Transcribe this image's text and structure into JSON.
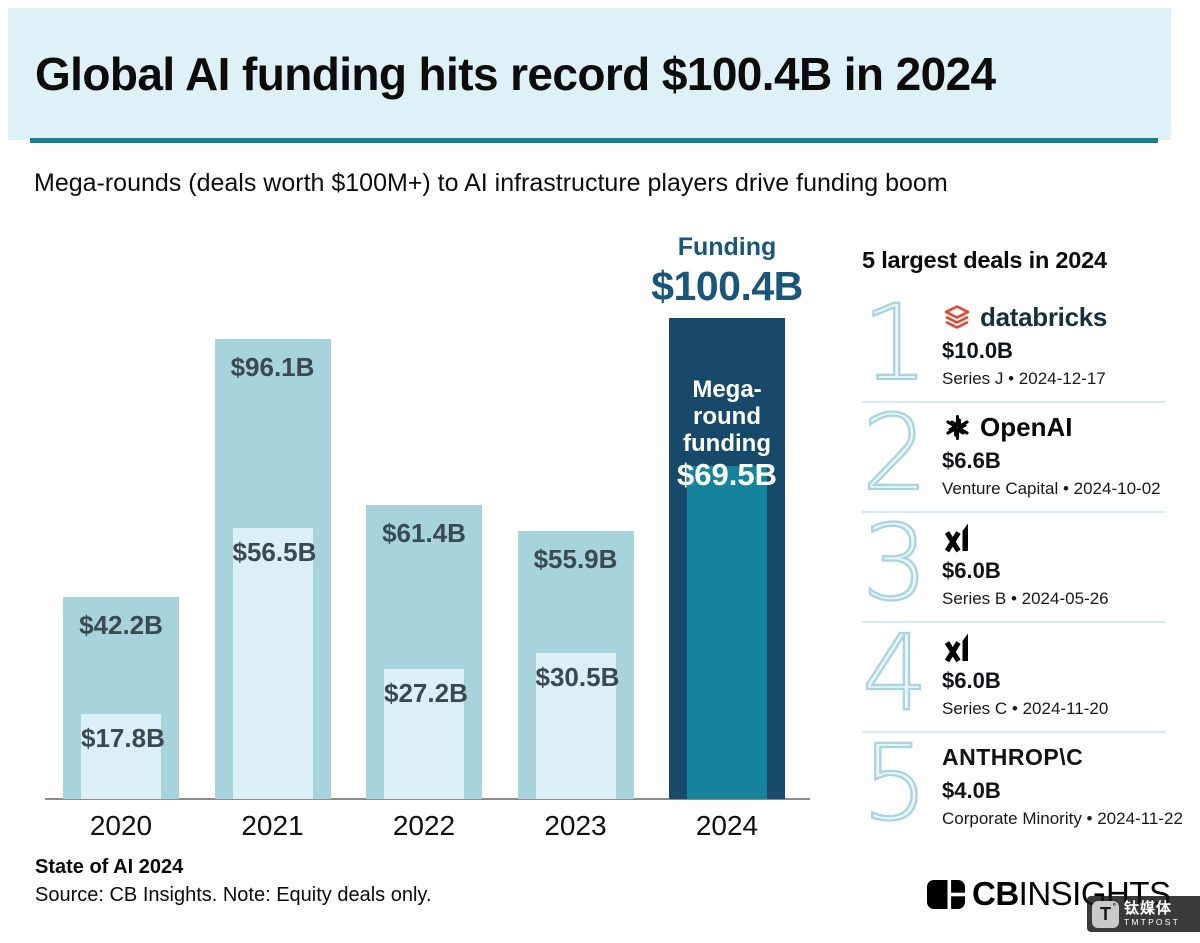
{
  "header": {
    "title": "Global AI funding hits record $100.4B in 2024",
    "subtitle": "Mega-rounds (deals worth $100M+) to AI infrastructure players drive funding boom"
  },
  "chart_data": {
    "type": "bar",
    "title": "Global AI funding hits record $100.4B in 2024",
    "categories": [
      "2020",
      "2021",
      "2022",
      "2023",
      "2024"
    ],
    "series": [
      {
        "name": "Funding",
        "unit": "$B",
        "values": [
          42.2,
          96.1,
          61.4,
          55.9,
          100.4
        ],
        "labels": [
          "$42.2B",
          "$96.1B",
          "$61.4B",
          "$55.9B",
          "$100.4B"
        ]
      },
      {
        "name": "Mega-round funding",
        "unit": "$B",
        "values": [
          17.8,
          56.5,
          27.2,
          30.5,
          69.5
        ],
        "labels": [
          "$17.8B",
          "$56.5B",
          "$27.2B",
          "$30.5B",
          "$69.5B"
        ]
      }
    ],
    "ylim": [
      0,
      100.4
    ],
    "grid": false,
    "legend_position": "none",
    "highlight_category": "2024",
    "annotations": {
      "funding_title": "Funding",
      "funding_value": "$100.4B",
      "mega_line1": "Mega-round",
      "mega_line2": "funding",
      "mega_value": "$69.5B"
    },
    "colors": {
      "total": "#a6d3dc",
      "mega": "#dceff4",
      "highlight_total": "#17496a",
      "highlight_mega": "#15839b",
      "value_label": "#3b4953",
      "annotation": "#1a567c",
      "axis": "#8b8d8f"
    }
  },
  "deals": {
    "heading": "5 largest deals in 2024",
    "items": [
      {
        "rank": "1",
        "company": "databricks",
        "logo": "databricks-logo",
        "amount": "$10.0B",
        "details": "Series J • 2024-12-17"
      },
      {
        "rank": "2",
        "company": "OpenAI",
        "logo": "openai-logo",
        "amount": "$6.6B",
        "details": "Venture Capital • 2024-10-02"
      },
      {
        "rank": "3",
        "company": "xAI",
        "logo": "xai-logo",
        "amount": "$6.0B",
        "details": "Series B • 2024-05-26"
      },
      {
        "rank": "4",
        "company": "xAI",
        "logo": "xai-logo",
        "amount": "$6.0B",
        "details": "Series C • 2024-11-20"
      },
      {
        "rank": "5",
        "company": "Anthropic",
        "logo": "anthropic-wordmark",
        "wordmark": "ANTHROP\\C",
        "amount": "$4.0B",
        "details": "Corporate Minority • 2024-11-22"
      }
    ]
  },
  "footer": {
    "report_label": "State of AI 2024",
    "source_note": "Source: CB Insights. Note: Equity deals only.",
    "brand": {
      "cb": "CB",
      "insights": "INSIGHTS"
    },
    "watermark": {
      "icon_letter": "T",
      "cn": "钛媒体",
      "en": "TMTPOST"
    }
  }
}
